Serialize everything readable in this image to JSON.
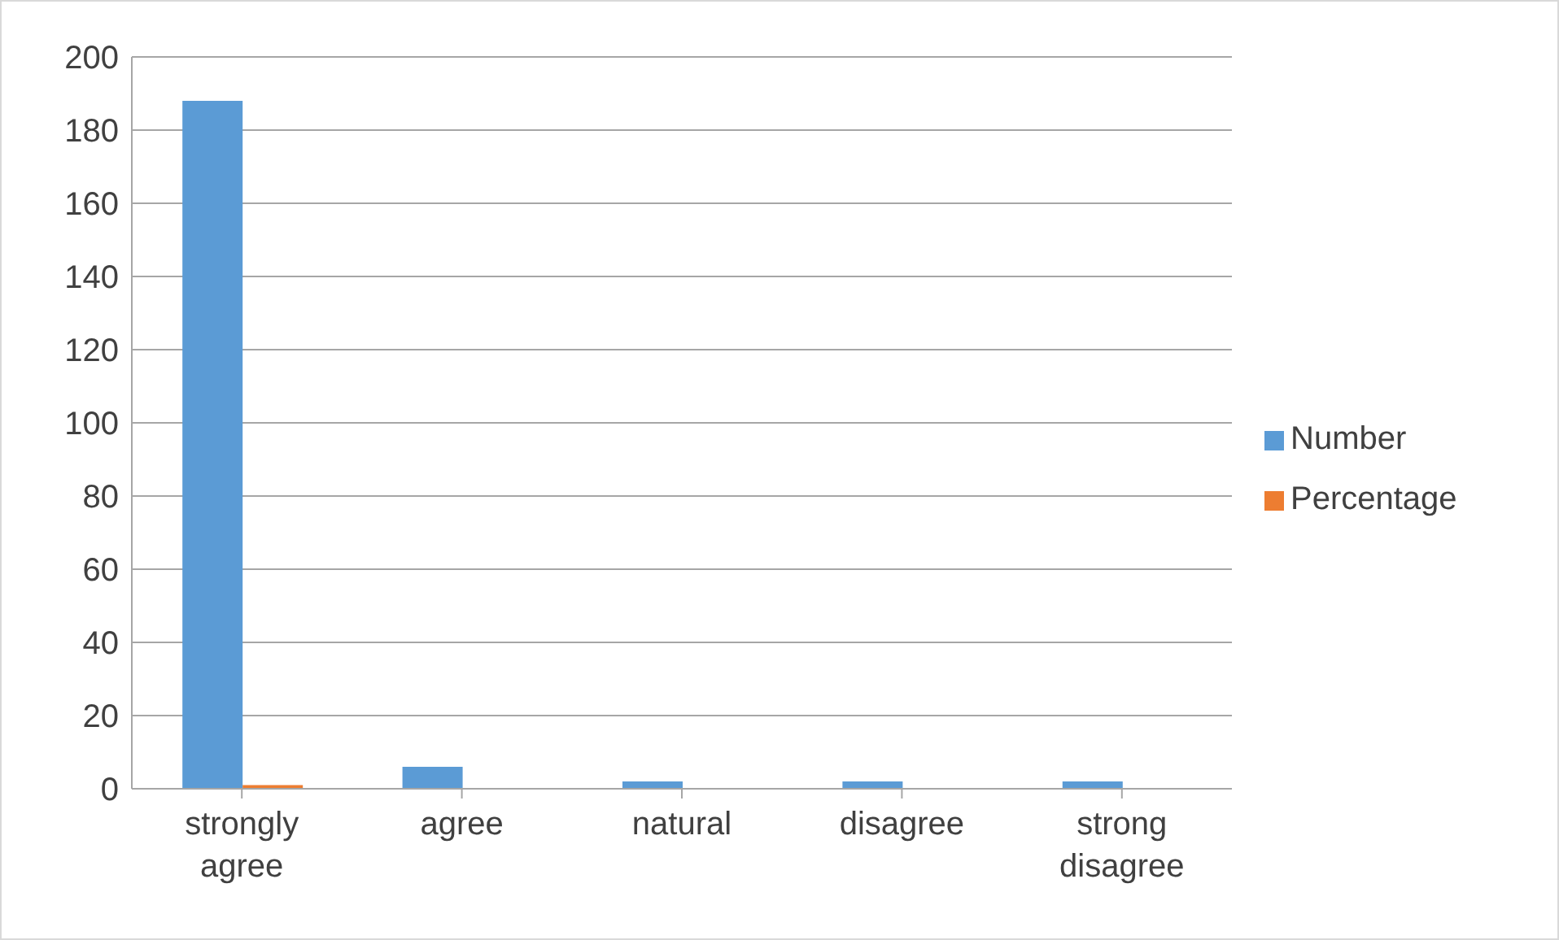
{
  "chart_data": {
    "type": "bar",
    "categories": [
      "strongly agree",
      "agree",
      "natural",
      "disagree",
      "strong disagree"
    ],
    "series": [
      {
        "name": "Number",
        "color": "#5b9bd5",
        "values": [
          188,
          6,
          2,
          2,
          2
        ]
      },
      {
        "name": "Percentage",
        "color": "#ed7d31",
        "values": [
          1,
          0,
          0,
          0,
          0
        ]
      }
    ],
    "ylim": [
      0,
      200
    ],
    "yticks": [
      0,
      20,
      40,
      60,
      80,
      100,
      120,
      140,
      160,
      180,
      200
    ],
    "grid": "y",
    "legend": "right"
  }
}
